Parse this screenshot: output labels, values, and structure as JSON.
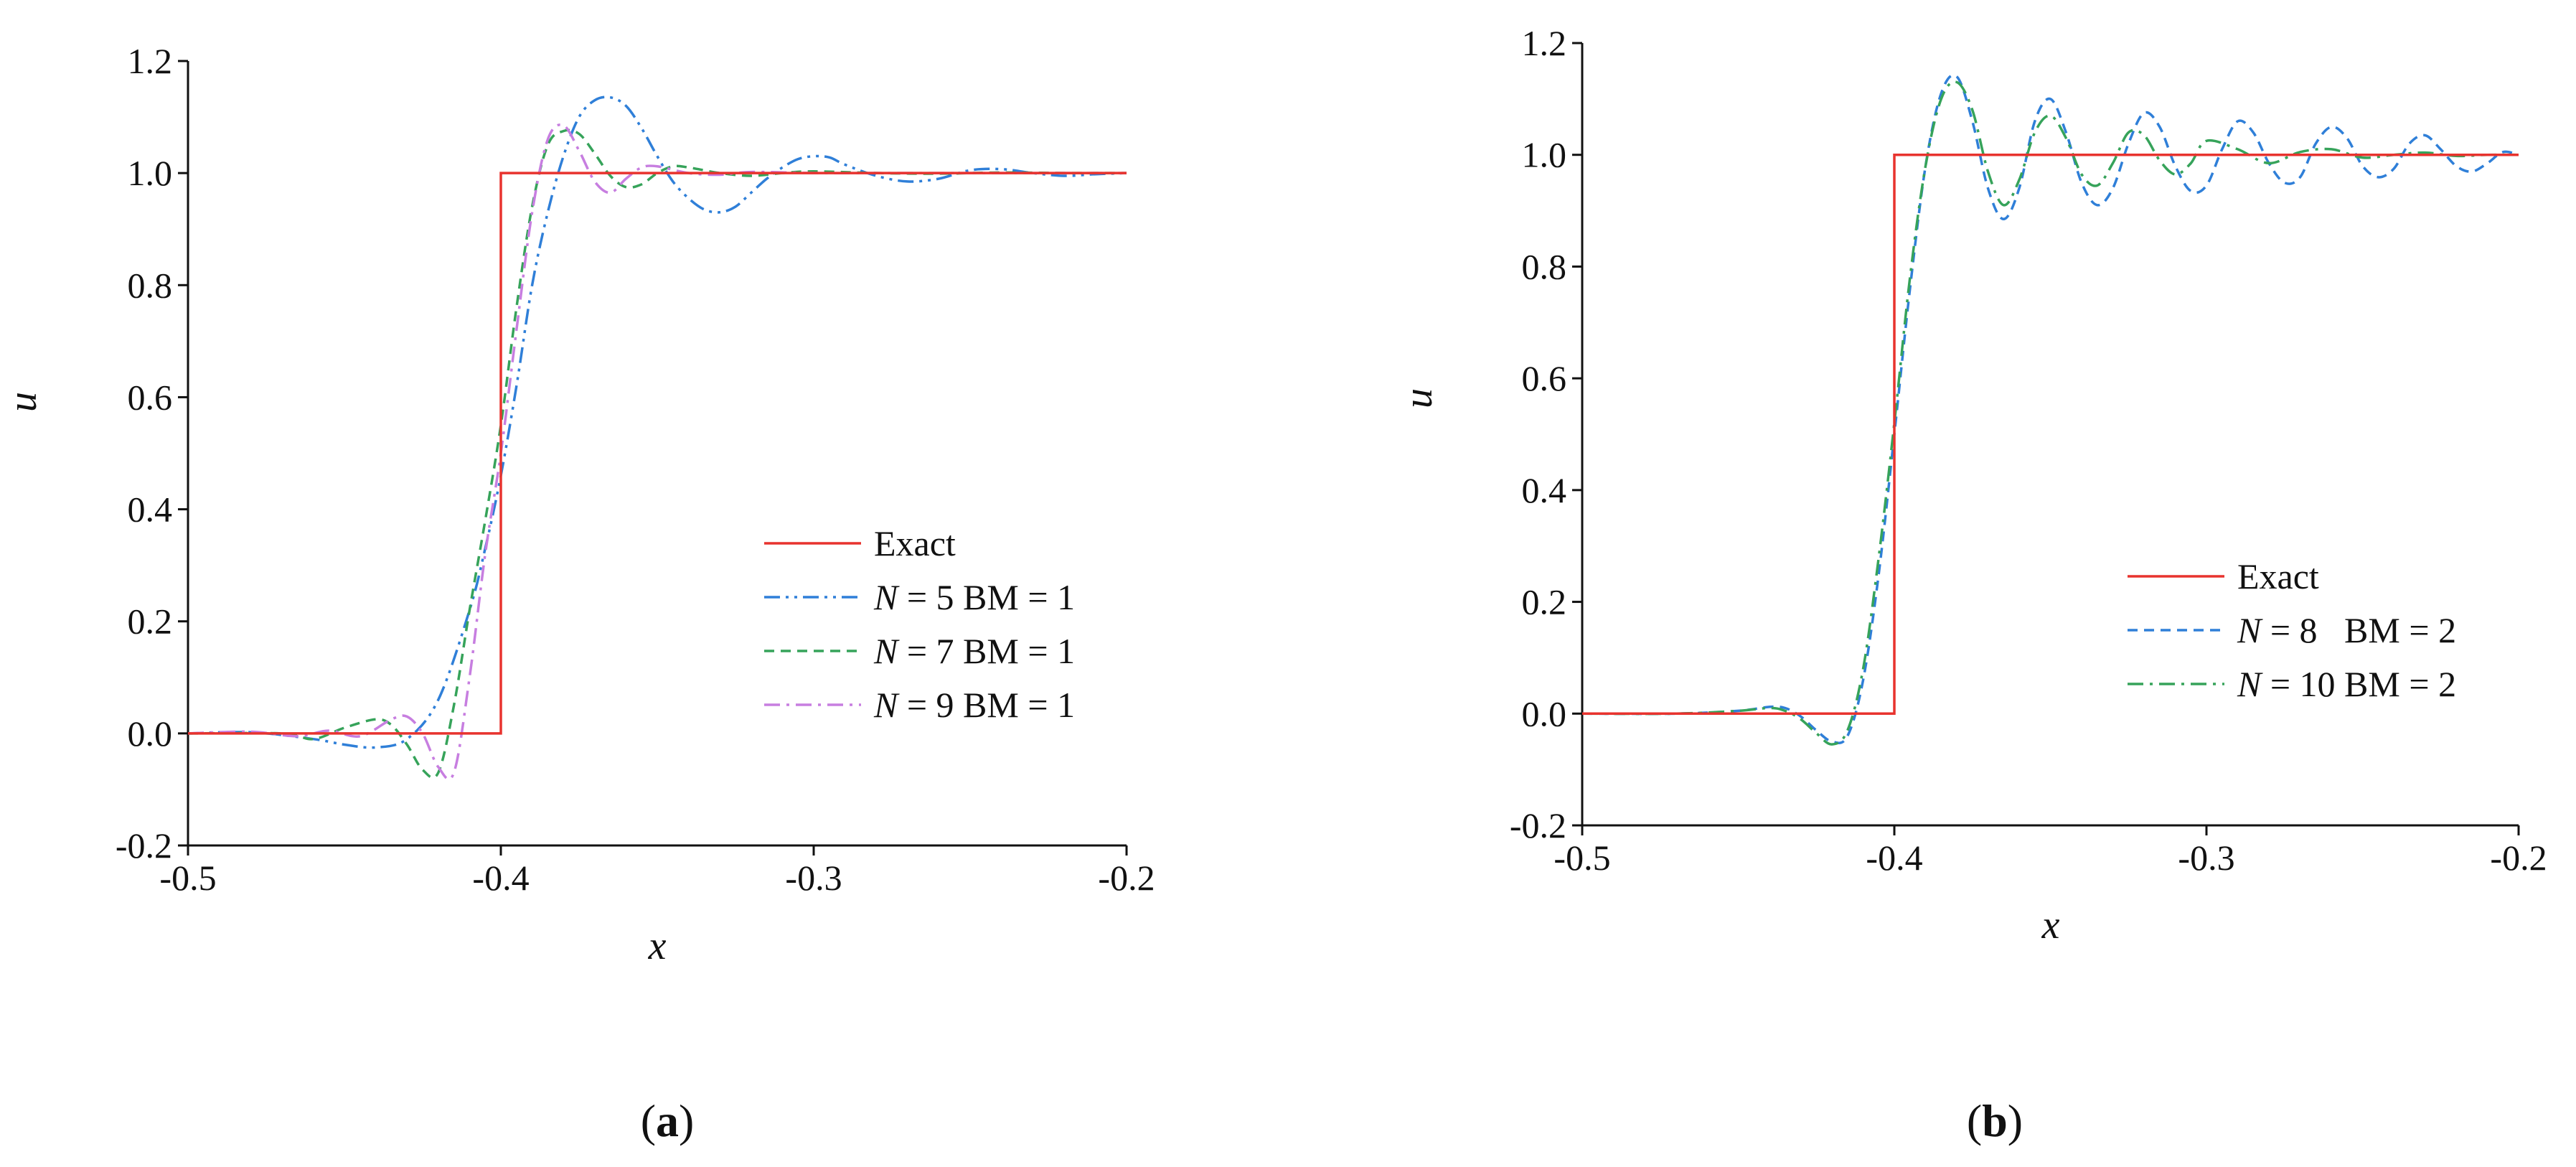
{
  "chart_data": [
    {
      "panel_label": "a",
      "type": "line",
      "title": "",
      "xlabel": "x",
      "ylabel": "u",
      "xlim": [
        -0.5,
        -0.2
      ],
      "ylim": [
        -0.2,
        1.2
      ],
      "xticks": [
        "-0.5",
        "-0.4",
        "-0.3",
        "-0.2"
      ],
      "xtick_values": [
        -0.5,
        -0.4,
        -0.3,
        -0.2
      ],
      "yticks": [
        "-0.2",
        "0.0",
        "0.2",
        "0.4",
        "0.6",
        "0.8",
        "1.0",
        "1.2"
      ],
      "ytick_values": [
        -0.2,
        0.0,
        0.2,
        0.4,
        0.6,
        0.8,
        1.0,
        1.2
      ],
      "grid": false,
      "legend_position": "center-right",
      "series": [
        {
          "name": "Exact",
          "legend_parts": [
            {
              "text": "Exact",
              "italic": false
            }
          ],
          "color": "#e8332e",
          "dash": "solid",
          "x": [
            -0.5,
            -0.4,
            -0.4,
            -0.2
          ],
          "y": [
            0.0,
            0.0,
            1.0,
            1.0
          ]
        },
        {
          "name": "N = 5 BM = 1",
          "legend_parts": [
            {
              "text": "N",
              "italic": true
            },
            {
              "text": " = 5 BM = 1",
              "italic": false
            }
          ],
          "color": "#2f7fd8",
          "dash": "dashdotdot",
          "x": [
            -0.5,
            -0.48,
            -0.46,
            -0.45,
            -0.44,
            -0.43,
            -0.42,
            -0.41,
            -0.405,
            -0.4,
            -0.395,
            -0.39,
            -0.385,
            -0.38,
            -0.375,
            -0.37,
            -0.365,
            -0.36,
            -0.355,
            -0.35,
            -0.345,
            -0.34,
            -0.335,
            -0.33,
            -0.325,
            -0.32,
            -0.315,
            -0.31,
            -0.305,
            -0.3,
            -0.295,
            -0.29,
            -0.28,
            -0.27,
            -0.26,
            -0.25,
            -0.24,
            -0.23,
            -0.22,
            -0.21,
            -0.2
          ],
          "y": [
            0.0,
            0.002,
            -0.01,
            -0.02,
            -0.025,
            -0.01,
            0.06,
            0.22,
            0.33,
            0.46,
            0.62,
            0.8,
            0.93,
            1.03,
            1.1,
            1.13,
            1.135,
            1.12,
            1.08,
            1.03,
            0.985,
            0.955,
            0.935,
            0.93,
            0.94,
            0.965,
            0.99,
            1.01,
            1.025,
            1.03,
            1.028,
            1.015,
            0.995,
            0.985,
            0.99,
            1.005,
            1.007,
            1.0,
            0.995,
            0.998,
            1.0
          ]
        },
        {
          "name": "N = 7 BM = 1",
          "legend_parts": [
            {
              "text": "N",
              "italic": true
            },
            {
              "text": " = 7 BM = 1",
              "italic": false
            }
          ],
          "color": "#36a35a",
          "dash": "dashed",
          "x": [
            -0.5,
            -0.47,
            -0.46,
            -0.45,
            -0.44,
            -0.435,
            -0.43,
            -0.425,
            -0.42,
            -0.415,
            -0.41,
            -0.405,
            -0.4,
            -0.395,
            -0.39,
            -0.385,
            -0.38,
            -0.375,
            -0.37,
            -0.365,
            -0.36,
            -0.355,
            -0.35,
            -0.345,
            -0.34,
            -0.33,
            -0.32,
            -0.31,
            -0.3,
            -0.28,
            -0.26,
            -0.24,
            -0.22,
            -0.2
          ],
          "y": [
            0.0,
            0.0,
            -0.01,
            0.01,
            0.025,
            0.015,
            -0.02,
            -0.065,
            -0.07,
            0.05,
            0.22,
            0.38,
            0.55,
            0.76,
            0.94,
            1.05,
            1.075,
            1.07,
            1.035,
            0.995,
            0.975,
            0.98,
            1.0,
            1.012,
            1.01,
            1.0,
            0.995,
            1.0,
            1.003,
            1.0,
            0.999,
            1.001,
            1.0,
            1.0
          ]
        },
        {
          "name": "N = 9 BM = 1",
          "legend_parts": [
            {
              "text": "N",
              "italic": true
            },
            {
              "text": " = 9 BM = 1",
              "italic": false
            }
          ],
          "color": "#c77ee0",
          "dash": "dashdot",
          "x": [
            -0.5,
            -0.48,
            -0.465,
            -0.455,
            -0.445,
            -0.435,
            -0.43,
            -0.425,
            -0.42,
            -0.415,
            -0.41,
            -0.405,
            -0.4,
            -0.395,
            -0.39,
            -0.385,
            -0.38,
            -0.375,
            -0.37,
            -0.365,
            -0.36,
            -0.355,
            -0.35,
            -0.34,
            -0.33,
            -0.32,
            -0.3,
            -0.28,
            -0.26,
            -0.24,
            -0.22,
            -0.2
          ],
          "y": [
            0.0,
            0.003,
            -0.005,
            0.005,
            -0.005,
            0.025,
            0.03,
            0.0,
            -0.06,
            -0.07,
            0.1,
            0.32,
            0.5,
            0.72,
            0.93,
            1.06,
            1.085,
            1.04,
            0.985,
            0.965,
            0.99,
            1.01,
            1.012,
            1.0,
            0.997,
            1.002,
            1.0,
            1.0,
            1.0,
            1.0,
            1.0,
            1.0
          ]
        }
      ]
    },
    {
      "panel_label": "b",
      "type": "line",
      "title": "",
      "xlabel": "x",
      "ylabel": "u",
      "xlim": [
        -0.5,
        -0.2
      ],
      "ylim": [
        -0.2,
        1.2
      ],
      "xticks": [
        "-0.5",
        "-0.4",
        "-0.3",
        "-0.2"
      ],
      "xtick_values": [
        -0.5,
        -0.4,
        -0.3,
        -0.2
      ],
      "yticks": [
        "-0.2",
        "0.0",
        "0.2",
        "0.4",
        "0.6",
        "0.8",
        "1.0",
        "1.2"
      ],
      "ytick_values": [
        -0.2,
        0.0,
        0.2,
        0.4,
        0.6,
        0.8,
        1.0,
        1.2
      ],
      "grid": false,
      "legend_position": "center-right",
      "series": [
        {
          "name": "Exact",
          "legend_parts": [
            {
              "text": "Exact",
              "italic": false
            }
          ],
          "color": "#e8332e",
          "dash": "solid",
          "x": [
            -0.5,
            -0.4,
            -0.4,
            -0.2
          ],
          "y": [
            0.0,
            0.0,
            1.0,
            1.0
          ]
        },
        {
          "name": "N = 8   BM = 2",
          "legend_parts": [
            {
              "text": "N",
              "italic": true
            },
            {
              "text": " = 8   BM = 2",
              "italic": false
            }
          ],
          "color": "#2f7fd8",
          "dash": "dashed",
          "x": [
            -0.5,
            -0.47,
            -0.45,
            -0.44,
            -0.435,
            -0.43,
            -0.425,
            -0.42,
            -0.415,
            -0.41,
            -0.405,
            -0.4,
            -0.395,
            -0.39,
            -0.385,
            -0.38,
            -0.375,
            -0.37,
            -0.365,
            -0.36,
            -0.355,
            -0.35,
            -0.345,
            -0.34,
            -0.335,
            -0.33,
            -0.325,
            -0.32,
            -0.315,
            -0.31,
            -0.305,
            -0.3,
            -0.295,
            -0.29,
            -0.285,
            -0.28,
            -0.275,
            -0.27,
            -0.265,
            -0.26,
            -0.255,
            -0.25,
            -0.245,
            -0.24,
            -0.235,
            -0.23,
            -0.225,
            -0.22,
            -0.215,
            -0.21,
            -0.205,
            -0.2
          ],
          "y": [
            0.0,
            0.0,
            0.005,
            0.012,
            0.01,
            -0.005,
            -0.03,
            -0.05,
            -0.04,
            0.06,
            0.25,
            0.5,
            0.76,
            0.98,
            1.11,
            1.14,
            1.06,
            0.94,
            0.885,
            0.94,
            1.06,
            1.1,
            1.04,
            0.95,
            0.91,
            0.94,
            1.02,
            1.075,
            1.05,
            0.98,
            0.935,
            0.945,
            1.01,
            1.06,
            1.04,
            0.985,
            0.95,
            0.96,
            1.02,
            1.05,
            1.03,
            0.98,
            0.96,
            0.975,
            1.02,
            1.035,
            1.01,
            0.98,
            0.97,
            0.985,
            1.005,
            1.0
          ]
        },
        {
          "name": "N = 10 BM = 2",
          "legend_parts": [
            {
              "text": "N",
              "italic": true
            },
            {
              "text": " = 10 BM = 2",
              "italic": false
            }
          ],
          "color": "#36a35a",
          "dash": "dashdot",
          "x": [
            -0.5,
            -0.47,
            -0.45,
            -0.44,
            -0.435,
            -0.43,
            -0.425,
            -0.42,
            -0.415,
            -0.41,
            -0.405,
            -0.4,
            -0.395,
            -0.39,
            -0.385,
            -0.38,
            -0.375,
            -0.37,
            -0.365,
            -0.36,
            -0.355,
            -0.35,
            -0.345,
            -0.34,
            -0.335,
            -0.33,
            -0.325,
            -0.32,
            -0.315,
            -0.31,
            -0.305,
            -0.3,
            -0.29,
            -0.28,
            -0.27,
            -0.26,
            -0.25,
            -0.24,
            -0.23,
            -0.22,
            -0.21,
            -0.2
          ],
          "y": [
            0.0,
            0.0,
            0.005,
            0.01,
            0.005,
            -0.01,
            -0.035,
            -0.055,
            -0.03,
            0.08,
            0.28,
            0.52,
            0.78,
            0.98,
            1.1,
            1.13,
            1.08,
            0.97,
            0.91,
            0.955,
            1.04,
            1.07,
            1.03,
            0.965,
            0.945,
            0.985,
            1.04,
            1.035,
            0.99,
            0.965,
            0.985,
            1.025,
            1.01,
            0.985,
            1.005,
            1.01,
            0.995,
            1.0,
            1.004,
            0.998,
            1.0,
            1.0
          ]
        }
      ]
    }
  ]
}
